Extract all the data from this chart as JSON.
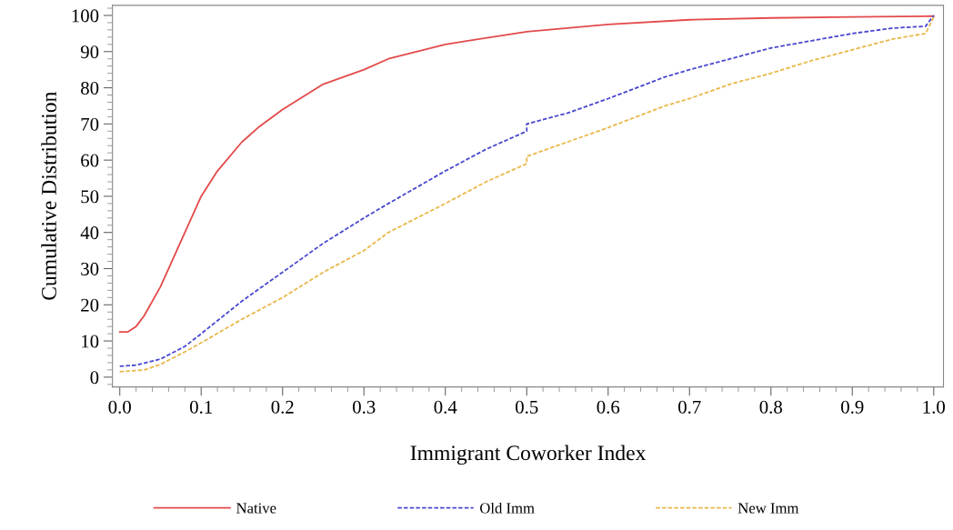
{
  "chart_data": {
    "type": "line",
    "xlabel": "Immigrant Coworker Index",
    "ylabel": "Cumulative Distribution",
    "xlim": [
      -0.009,
      1.012
    ],
    "ylim": [
      -2.7,
      102.8
    ],
    "xticks": [
      {
        "value": 0,
        "label": "0.0"
      },
      0.1,
      0.2,
      0.3,
      0.4,
      0.5,
      0.6,
      0.7,
      0.8,
      0.9,
      {
        "value": 1,
        "label": "1.0"
      }
    ],
    "yticks": [
      0,
      10,
      20,
      30,
      40,
      50,
      60,
      70,
      80,
      90,
      100
    ],
    "grid": false,
    "legend": "bottom",
    "marker": "none",
    "series": [
      {
        "name": "Native",
        "color": "#e34a4a",
        "line_style": "solid",
        "x": [
          0,
          0.01,
          0.02,
          0.03,
          0.05,
          0.07,
          0.1,
          0.12,
          0.15,
          0.17,
          0.2,
          0.25,
          0.3,
          0.33,
          0.4,
          0.5,
          0.6,
          0.7,
          0.8,
          0.9,
          1.0
        ],
        "values": [
          12.5,
          12.5,
          14,
          17,
          25,
          35,
          50,
          57,
          65,
          69,
          74,
          81,
          85,
          88,
          92,
          95.5,
          97.5,
          98.8,
          99.3,
          99.6,
          99.8
        ]
      },
      {
        "name": "Old Imm",
        "color": "#4848d0",
        "line_style": "dashed",
        "x": [
          0,
          0.02,
          0.05,
          0.08,
          0.1,
          0.15,
          0.2,
          0.25,
          0.3,
          0.33,
          0.4,
          0.45,
          0.5,
          0.5,
          0.55,
          0.6,
          0.67,
          0.7,
          0.75,
          0.8,
          0.85,
          0.9,
          0.95,
          0.99,
          1.0
        ],
        "values": [
          3,
          3.3,
          5,
          8.5,
          12,
          21,
          29,
          37,
          44,
          48,
          57,
          63,
          68,
          70,
          73,
          77,
          83,
          85,
          88,
          91,
          93,
          95,
          96.5,
          97,
          100
        ]
      },
      {
        "name": "New Imm",
        "color": "#e8b84a",
        "line_style": "dashed",
        "x": [
          0,
          0.03,
          0.05,
          0.08,
          0.1,
          0.15,
          0.2,
          0.25,
          0.3,
          0.33,
          0.4,
          0.45,
          0.5,
          0.5,
          0.6,
          0.67,
          0.7,
          0.75,
          0.8,
          0.85,
          0.9,
          0.95,
          0.99,
          1.0
        ],
        "values": [
          1.5,
          2,
          3.5,
          7,
          9.5,
          16,
          22,
          29,
          35,
          40,
          48,
          54,
          59,
          61,
          69,
          75,
          77,
          81,
          84,
          87.5,
          90.5,
          93.5,
          95,
          99.5
        ]
      }
    ]
  }
}
